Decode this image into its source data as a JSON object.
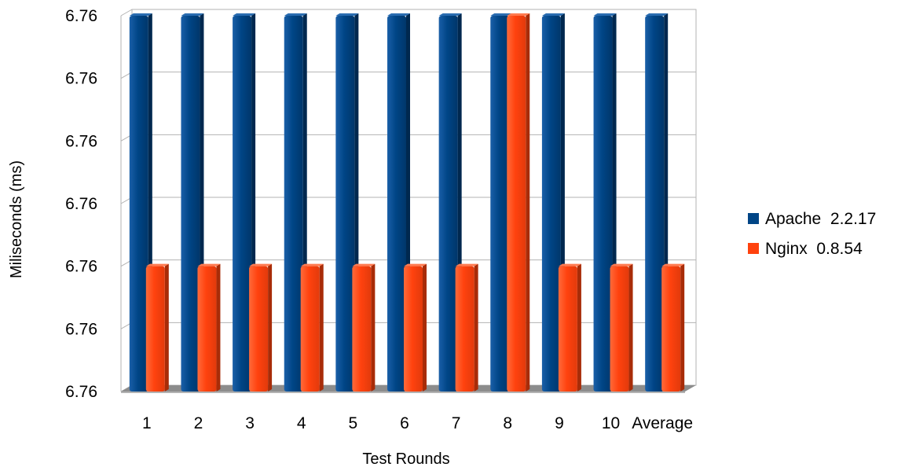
{
  "chart_data": {
    "type": "bar",
    "categories": [
      "1",
      "2",
      "3",
      "4",
      "5",
      "6",
      "7",
      "8",
      "9",
      "10",
      "Average"
    ],
    "series": [
      {
        "name": "Apache  2.2.17",
        "values": [
          6,
          6,
          6,
          6,
          6,
          6,
          6,
          6,
          6,
          6,
          6
        ]
      },
      {
        "name": "Nginx  0.8.54",
        "values": [
          2,
          2,
          2,
          2,
          2,
          2,
          2,
          6,
          2,
          2,
          2
        ]
      }
    ],
    "xlabel": "Test Rounds",
    "ylabel": "Miliseconds (ms)",
    "ytick_labels": [
      "6.76",
      "6.76",
      "6.76",
      "6.76",
      "6.76",
      "6.76",
      "6.76"
    ],
    "ylim": [
      0,
      6
    ],
    "grid": true,
    "legend_position": "right",
    "colors": {
      "Apache  2.2.17": "#004586",
      "Nginx  0.8.54": "#ff420e"
    }
  }
}
